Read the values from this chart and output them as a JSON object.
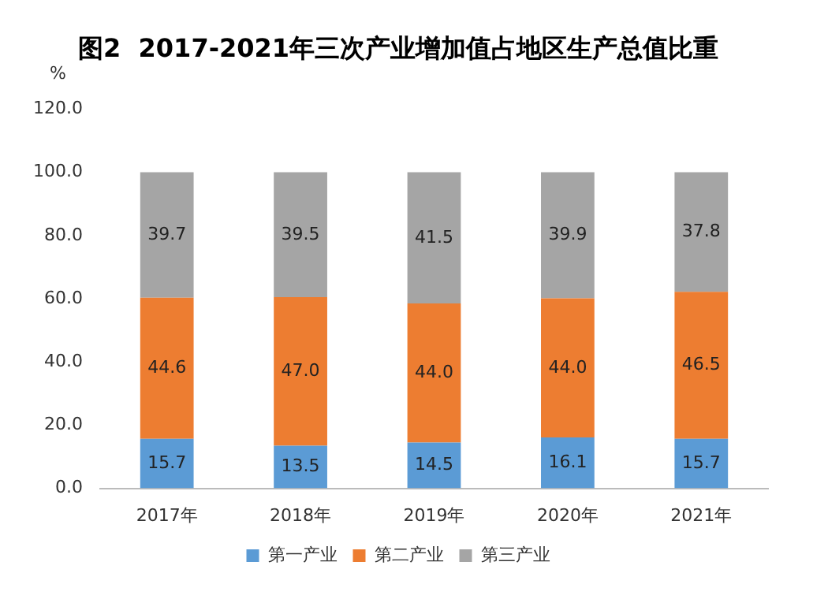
{
  "chart_data": {
    "type": "bar",
    "title": "图2  2017-2021年三次产业增加值占地区生产总值比重",
    "ylabel": "%",
    "stacked": true,
    "categories": [
      "2017年",
      "2018年",
      "2019年",
      "2020年",
      "2021年"
    ],
    "series": [
      {
        "name": "第一产业",
        "color": "#5b9bd5",
        "values": [
          15.7,
          13.5,
          14.5,
          16.1,
          15.7
        ],
        "value_labels": [
          "15.7",
          "13.5",
          "14.5",
          "16.1",
          "15.7"
        ]
      },
      {
        "name": "第二产业",
        "color": "#ed7d31",
        "values": [
          44.6,
          47.0,
          44.0,
          44.0,
          46.5
        ],
        "value_labels": [
          "44.6",
          "47.0",
          "44.0",
          "44.0",
          "46.5"
        ]
      },
      {
        "name": "第三产业",
        "color": "#a5a5a5",
        "values": [
          39.7,
          39.5,
          41.5,
          39.9,
          37.8
        ],
        "value_labels": [
          "39.7",
          "39.5",
          "41.5",
          "39.9",
          "37.8"
        ]
      }
    ],
    "ylim": [
      0,
      120
    ],
    "yticks": [
      {
        "value": 0,
        "label": "0.0"
      },
      {
        "value": 20,
        "label": "20.0"
      },
      {
        "value": 40,
        "label": "40.0"
      },
      {
        "value": 60,
        "label": "60.0"
      },
      {
        "value": 80,
        "label": "80.0"
      },
      {
        "value": 100,
        "label": "100.0"
      },
      {
        "value": 120,
        "label": "120.0"
      }
    ],
    "grid": false,
    "legend": "bottom"
  }
}
